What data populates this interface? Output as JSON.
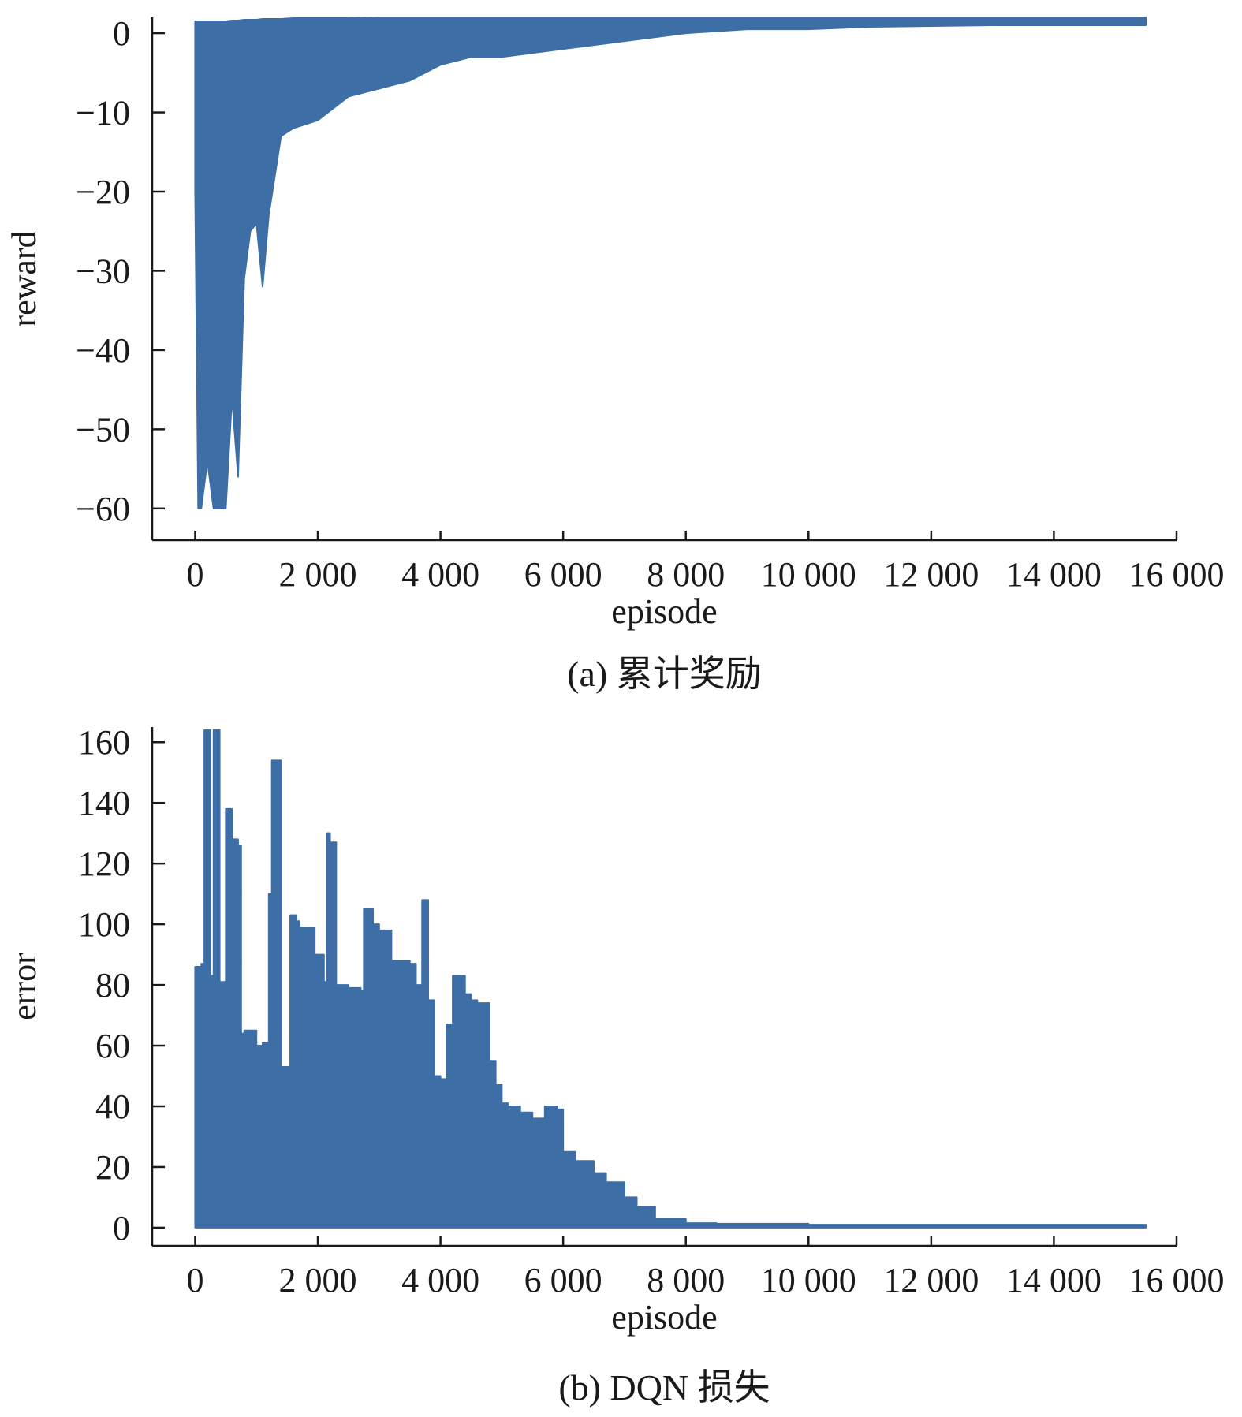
{
  "colors": {
    "series": "#3d6ea5",
    "axis": "#1a1a1a"
  },
  "chart_data": [
    {
      "type": "area",
      "panel": "a",
      "caption": "(a) 累计奖励",
      "xlabel": "episode",
      "ylabel": "reward",
      "xlim": [
        -700,
        16000
      ],
      "ylim": [
        -64,
        2
      ],
      "xticks": [
        0,
        2000,
        4000,
        6000,
        8000,
        10000,
        12000,
        14000,
        16000
      ],
      "xtick_labels": [
        "0",
        "2 000",
        "4 000",
        "6 000",
        "8 000",
        "10 000",
        "12 000",
        "14 000",
        "16 000"
      ],
      "yticks": [
        0,
        -10,
        -20,
        -30,
        -40,
        -50,
        -60
      ],
      "ytick_labels": [
        "0",
        "−10",
        "−20",
        "−30",
        "−40",
        "−50",
        "−60"
      ],
      "grid": false,
      "series": [
        {
          "x": [
            0,
            50,
            100,
            200,
            300,
            400,
            500,
            600,
            700,
            800,
            900,
            1000,
            1100,
            1200,
            1400,
            1600,
            2000,
            2500,
            3000,
            3500,
            4000,
            4500,
            5000,
            6000,
            7000,
            8000,
            9000,
            10000,
            11000,
            12000,
            13000,
            14000,
            15500
          ],
          "upper": [
            1.5,
            1.5,
            1.5,
            1.5,
            1.5,
            1.5,
            1.5,
            1.6,
            1.6,
            1.7,
            1.7,
            1.7,
            1.8,
            1.8,
            1.8,
            1.9,
            1.9,
            1.9,
            2.0,
            2.0,
            2.0,
            2.0,
            2.0,
            2.0,
            2.0,
            2.0,
            2.0,
            2.0,
            2.0,
            2.0,
            2.0,
            2.0,
            2.0
          ],
          "lower": [
            -20,
            -60,
            -60,
            -54,
            -60,
            -60,
            -60,
            -46,
            -56,
            -31,
            -25,
            -24,
            -32,
            -23,
            -13,
            -12,
            -11,
            -8,
            -7,
            -6,
            -4,
            -3,
            -3,
            -2,
            -1,
            0,
            0.5,
            0.5,
            0.8,
            0.9,
            1.0,
            1.0,
            1.0
          ]
        }
      ]
    },
    {
      "type": "area",
      "panel": "b",
      "caption": "(b) DQN 损失",
      "xlabel": "episode",
      "ylabel": "error",
      "xlim": [
        -700,
        16000
      ],
      "ylim": [
        -6,
        165
      ],
      "xticks": [
        0,
        2000,
        4000,
        6000,
        8000,
        10000,
        12000,
        14000,
        16000
      ],
      "xtick_labels": [
        "0",
        "2 000",
        "4 000",
        "6 000",
        "8 000",
        "10 000",
        "12 000",
        "14 000",
        "16 000"
      ],
      "yticks": [
        0,
        20,
        40,
        60,
        80,
        100,
        120,
        140,
        160
      ],
      "ytick_labels": [
        "0",
        "20",
        "40",
        "60",
        "80",
        "100",
        "120",
        "140",
        "160"
      ],
      "grid": false,
      "series": [
        {
          "x": [
            0,
            100,
            150,
            200,
            250,
            300,
            350,
            400,
            500,
            550,
            600,
            700,
            750,
            800,
            1000,
            1100,
            1200,
            1250,
            1300,
            1400,
            1550,
            1650,
            1700,
            1800,
            1950,
            2100,
            2150,
            2200,
            2300,
            2500,
            2700,
            2750,
            2900,
            3000,
            3100,
            3200,
            3300,
            3500,
            3600,
            3700,
            3750,
            3800,
            3900,
            4000,
            4100,
            4200,
            4250,
            4400,
            4500,
            4600,
            4700,
            4800,
            4900,
            5000,
            5100,
            5300,
            5500,
            5700,
            5900,
            6000,
            6200,
            6500,
            6700,
            7000,
            7200,
            7500,
            8000,
            8500,
            10000,
            12000,
            14000,
            15500
          ],
          "upper": [
            86,
            87,
            164,
            164,
            83,
            164,
            164,
            81,
            138,
            138,
            128,
            126,
            64,
            65,
            60,
            61,
            110,
            154,
            154,
            53,
            103,
            101,
            99,
            99,
            90,
            81,
            130,
            127,
            80,
            79,
            78,
            105,
            100,
            98,
            98,
            88,
            88,
            87,
            80,
            108,
            108,
            75,
            50,
            49,
            67,
            83,
            83,
            77,
            75,
            74,
            74,
            55,
            47,
            41,
            40,
            38,
            36,
            40,
            39,
            25,
            22,
            18,
            15,
            10,
            7,
            3,
            1.5,
            1.3,
            1.0,
            1.0,
            1.0,
            1.0
          ]
        }
      ]
    }
  ]
}
